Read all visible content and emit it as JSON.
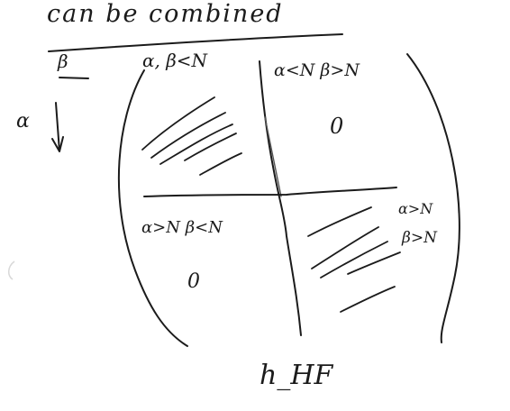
{
  "header": {
    "title": "can be combined",
    "beta_label": "β"
  },
  "axes": {
    "alpha_label": "α"
  },
  "quadrants": {
    "top_left": "α, β<N",
    "top_right": "α<N β>N",
    "bottom_left": "α>N β<N",
    "bottom_right_line1": "α>N",
    "bottom_right_line2": "β>N"
  },
  "values": {
    "top_right_value": "0",
    "bottom_left_value": "0"
  },
  "footer": {
    "label": "h_HF"
  }
}
